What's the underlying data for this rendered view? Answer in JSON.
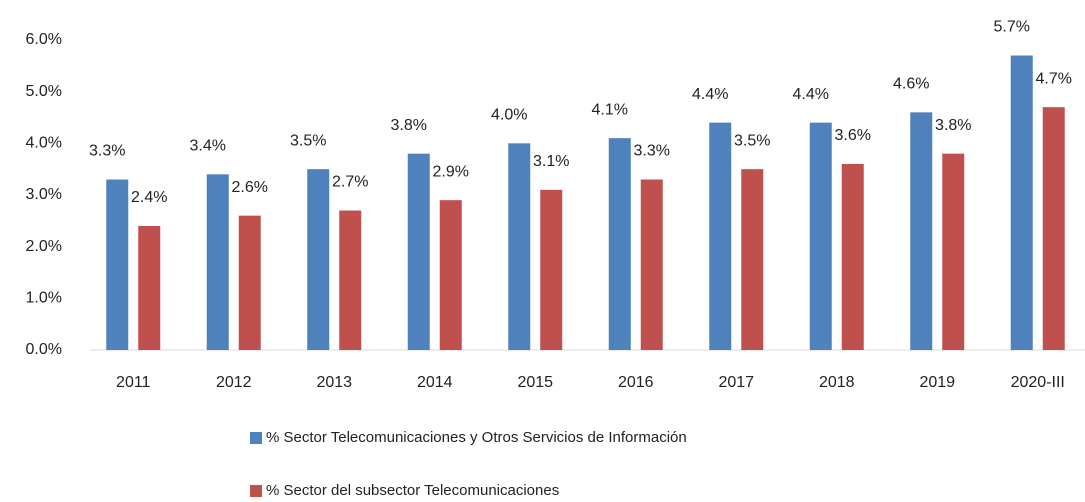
{
  "chart_data": {
    "type": "bar",
    "categories": [
      "2011",
      "2012",
      "2013",
      "2014",
      "2015",
      "2016",
      "2017",
      "2018",
      "2019",
      "2020-III"
    ],
    "series": [
      {
        "name": "% Sector Telecomunicaciones y Otros Servicios de Información",
        "color": "#4f81bd",
        "values": [
          3.3,
          3.4,
          3.5,
          3.8,
          4.0,
          4.1,
          4.4,
          4.4,
          4.6,
          5.7
        ],
        "value_labels": [
          "3.3%",
          "3.4%",
          "3.5%",
          "3.8%",
          "4.0%",
          "4.1%",
          "4.4%",
          "4.4%",
          "4.6%",
          "5.7%"
        ]
      },
      {
        "name": "% Sector del subsector Telecomunicaciones",
        "color": "#c0504d",
        "values": [
          2.4,
          2.6,
          2.7,
          2.9,
          3.1,
          3.3,
          3.5,
          3.6,
          3.8,
          4.7
        ],
        "value_labels": [
          "2.4%",
          "2.6%",
          "2.7%",
          "2.9%",
          "3.1%",
          "3.3%",
          "3.5%",
          "3.6%",
          "3.8%",
          "4.7%"
        ]
      }
    ],
    "ylim": [
      0,
      6
    ],
    "yticks": [
      {
        "value": 0,
        "label": "0.0%"
      },
      {
        "value": 1,
        "label": "1.0%"
      },
      {
        "value": 2,
        "label": "2.0%"
      },
      {
        "value": 3,
        "label": "3.0%"
      },
      {
        "value": 4,
        "label": "4.0%"
      },
      {
        "value": 5,
        "label": "5.0%"
      },
      {
        "value": 6,
        "label": "6.0%"
      }
    ],
    "grid": false,
    "legend": "bottom"
  }
}
